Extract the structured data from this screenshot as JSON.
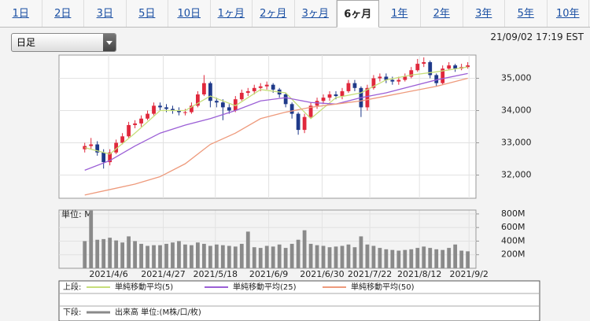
{
  "tabs": [
    "1日",
    "2日",
    "3日",
    "5日",
    "10日",
    "1ヶ月",
    "2ヶ月",
    "3ヶ月",
    "6ヶ月",
    "1年",
    "2年",
    "3年",
    "5年",
    "10年"
  ],
  "active_tab": 8,
  "selector": "日足",
  "timestamp": "21/09/02 17:19 EST",
  "chart_data": [
    {
      "type": "candlestick",
      "legend_label": "上段:",
      "up_color": "#e0283c",
      "down_color": "#1f3a8a",
      "xlim": [
        -4.1,
        62.3
      ],
      "xticks": [
        {
          "value": 3.8,
          "label": "2021/4/6"
        },
        {
          "value": 12.5,
          "label": "2021/4/27"
        },
        {
          "value": 20.8,
          "label": "2021/5/18"
        },
        {
          "value": 29.3,
          "label": "2021/6/9"
        },
        {
          "value": 37.8,
          "label": "2021/6/30"
        },
        {
          "value": 45.4,
          "label": "2021/7/22"
        },
        {
          "value": 53.3,
          "label": "2021/8/12"
        },
        {
          "value": 61.2,
          "label": "2021/9/2"
        }
      ],
      "ylim": [
        31280,
        35720
      ],
      "yticks": [
        {
          "value": 32000,
          "label": "32,000"
        },
        {
          "value": 33000,
          "label": "33,000"
        },
        {
          "value": 34000,
          "label": "34,000"
        },
        {
          "value": 35000,
          "label": "35,000"
        }
      ],
      "grid": true,
      "open": [
        32800,
        32900,
        32950,
        32700,
        32400,
        32700,
        33000,
        33200,
        33550,
        33600,
        33750,
        33900,
        34150,
        34100,
        34050,
        34000,
        33950,
        33950,
        34150,
        34500,
        34850,
        34300,
        34250,
        34100,
        34000,
        34350,
        34550,
        34600,
        34700,
        34750,
        34800,
        34650,
        34500,
        34200,
        33900,
        33400,
        33800,
        34150,
        34300,
        34400,
        34500,
        34450,
        34600,
        34850,
        34700,
        34100,
        34700,
        35000,
        35050,
        34950,
        34900,
        34950,
        35050,
        35250,
        35450,
        35500,
        35100,
        34850,
        35300,
        35400,
        35300,
        35350
      ],
      "high": [
        33000,
        33150,
        33050,
        32800,
        32800,
        33100,
        33300,
        33650,
        33700,
        33850,
        34000,
        34250,
        34250,
        34200,
        34150,
        34100,
        34050,
        34250,
        34600,
        35100,
        34900,
        34400,
        34350,
        34200,
        34450,
        34650,
        34700,
        34800,
        34850,
        34900,
        34850,
        34700,
        34550,
        34250,
        33950,
        33900,
        34250,
        34400,
        34500,
        34600,
        34600,
        34700,
        34950,
        34950,
        34750,
        34800,
        35100,
        35150,
        35150,
        35050,
        35050,
        35150,
        35350,
        35600,
        35650,
        35550,
        35150,
        35400,
        35500,
        35450,
        35450,
        35500
      ],
      "low": [
        32700,
        32800,
        32600,
        32200,
        32300,
        32650,
        32950,
        33150,
        33450,
        33500,
        33700,
        33850,
        34000,
        33950,
        33900,
        33850,
        33850,
        33900,
        34100,
        34450,
        34100,
        34100,
        33700,
        33900,
        33950,
        34300,
        34450,
        34500,
        34600,
        34650,
        34550,
        34400,
        34100,
        33750,
        33250,
        33300,
        33750,
        34050,
        34200,
        34300,
        34350,
        34350,
        34550,
        34600,
        33800,
        34000,
        34650,
        34900,
        34850,
        34800,
        34800,
        34900,
        35000,
        35200,
        35350,
        35000,
        34750,
        34800,
        35250,
        35200,
        35250,
        35300
      ],
      "close": [
        32900,
        32950,
        32700,
        32400,
        32700,
        33000,
        33200,
        33550,
        33600,
        33750,
        33900,
        34150,
        34100,
        34050,
        34000,
        33950,
        33950,
        34150,
        34500,
        34850,
        34300,
        34250,
        34100,
        34000,
        34350,
        34550,
        34600,
        34700,
        34750,
        34800,
        34650,
        34500,
        34200,
        33900,
        33400,
        33800,
        34150,
        34300,
        34400,
        34500,
        34450,
        34600,
        34850,
        34700,
        34100,
        34700,
        35000,
        35050,
        34950,
        34900,
        34950,
        35050,
        35250,
        35450,
        35500,
        35100,
        34850,
        35300,
        35400,
        35300,
        35350,
        35400
      ],
      "series": [
        {
          "name": "単純移動平均(5)",
          "color": "#c6de7a",
          "x": [
            0,
            4,
            8,
            12,
            16,
            20,
            24,
            28,
            32,
            36,
            40,
            44,
            48,
            52,
            56,
            61
          ],
          "values": [
            32850,
            32650,
            33300,
            34000,
            34000,
            34450,
            34150,
            34650,
            34550,
            33750,
            34400,
            34550,
            34950,
            35100,
            35200,
            35350
          ]
        },
        {
          "name": "単純移動平均(25)",
          "color": "#9b5fd6",
          "x": [
            0,
            4,
            8,
            12,
            16,
            20,
            24,
            28,
            32,
            36,
            40,
            44,
            48,
            52,
            56,
            61
          ],
          "values": [
            32150,
            32450,
            32900,
            33300,
            33550,
            33750,
            34000,
            34300,
            34400,
            34250,
            34200,
            34400,
            34550,
            34750,
            34950,
            35150
          ]
        },
        {
          "name": "単純移動平均(50)",
          "color": "#ee9a7c",
          "x": [
            0,
            4,
            8,
            12,
            16,
            20,
            24,
            28,
            32,
            36,
            40,
            44,
            48,
            52,
            56,
            61
          ],
          "values": [
            31380,
            31550,
            31720,
            31950,
            32350,
            32950,
            33300,
            33750,
            33950,
            34100,
            34200,
            34300,
            34450,
            34600,
            34750,
            35000
          ]
        }
      ]
    },
    {
      "type": "bar",
      "legend_label": "下段:",
      "unit_label": "単位: M",
      "xlim": [
        -4.1,
        62.3
      ],
      "ylim": [
        0,
        857
      ],
      "yticks": [
        {
          "value": 200,
          "label": "200M"
        },
        {
          "value": 400,
          "label": "400M"
        },
        {
          "value": 600,
          "label": "600M"
        },
        {
          "value": 800,
          "label": "800M"
        }
      ],
      "grid": true,
      "series": [
        {
          "name": "出来高 単位:(M株/口/枚)",
          "color": "#8a8a8a",
          "values": [
            400,
            850,
            420,
            430,
            450,
            410,
            380,
            470,
            400,
            360,
            330,
            340,
            340,
            360,
            380,
            400,
            350,
            340,
            380,
            360,
            330,
            350,
            340,
            330,
            320,
            360,
            540,
            310,
            300,
            330,
            320,
            350,
            300,
            360,
            420,
            560,
            360,
            340,
            330,
            310,
            320,
            330,
            350,
            310,
            470,
            350,
            330,
            300,
            280,
            270,
            260,
            270,
            280,
            300,
            320,
            300,
            280,
            270,
            300,
            350,
            260,
            250
          ]
        }
      ]
    }
  ]
}
